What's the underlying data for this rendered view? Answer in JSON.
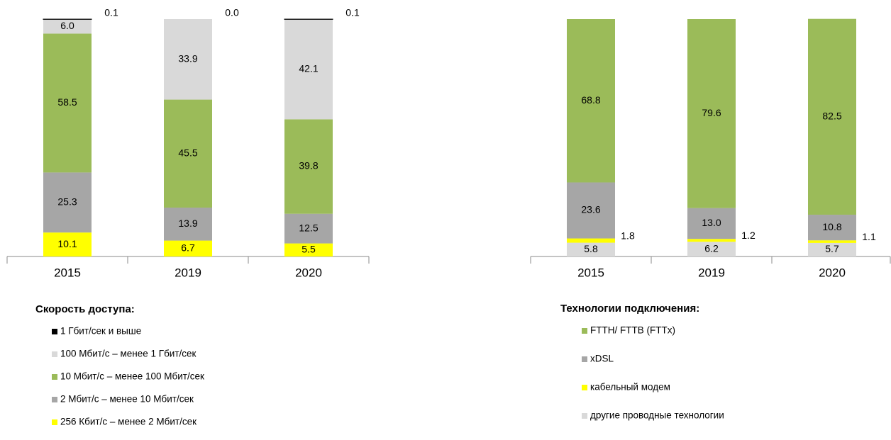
{
  "chart_data": [
    {
      "type": "bar",
      "stacked": true,
      "legend_title": "Скорость доступа:",
      "categories": [
        "2015",
        "2019",
        "2020"
      ],
      "ylim": [
        0,
        100
      ],
      "series": [
        {
          "name": "1 Гбит/сек  и выше",
          "color": "#000000",
          "values": [
            0.1,
            0.0,
            0.1
          ],
          "value_labels": [
            "0.1",
            "0.0",
            "0.1"
          ]
        },
        {
          "name": " 100 Мбит/с – менее 1 Гбит/сек",
          "color": "#d9d9d9",
          "values": [
            6.0,
            33.9,
            42.1
          ],
          "value_labels": [
            "6.0",
            "33.9",
            "42.1"
          ]
        },
        {
          "name": "10 Мбит/с – менее 100 Мбит/сек",
          "color": "#9bbb59",
          "values": [
            58.5,
            45.5,
            39.8
          ],
          "value_labels": [
            "58.5",
            "45.5",
            "39.8"
          ]
        },
        {
          "name": "2  Мбит/с – менее 10 Мбит/сек",
          "color": "#a6a6a6",
          "values": [
            25.3,
            13.9,
            12.5
          ],
          "value_labels": [
            "25.3",
            "13.9",
            "12.5"
          ]
        },
        {
          "name": "256 Кбит/с – менее 2 Мбит/сек",
          "color": "#ffff00",
          "values": [
            10.1,
            6.7,
            5.5
          ],
          "value_labels": [
            "10.1",
            "6.7",
            "5.5"
          ]
        }
      ]
    },
    {
      "type": "bar",
      "stacked": true,
      "legend_title": "Технологии подключения:",
      "categories": [
        "2015",
        "2019",
        "2020"
      ],
      "ylim": [
        0,
        100
      ],
      "series": [
        {
          "name": "FTTH/ FTTB (FTTx)",
          "color": "#9bbb59",
          "values": [
            68.8,
            79.6,
            82.5
          ],
          "value_labels": [
            "68.8",
            "79.6",
            "82.5"
          ]
        },
        {
          "name": "xDSL",
          "color": "#a6a6a6",
          "values": [
            23.6,
            13.0,
            10.8
          ],
          "value_labels": [
            "23.6",
            "13.0",
            "10.8"
          ]
        },
        {
          "name": "кабельный модем",
          "color": "#ffff00",
          "values": [
            1.8,
            1.2,
            1.1
          ],
          "value_labels": [
            "1.8",
            "1.2",
            "1.1"
          ]
        },
        {
          "name": "другие проводные технологии",
          "color": "#d9d9d9",
          "values": [
            5.8,
            6.2,
            5.7
          ],
          "value_labels": [
            "5.8",
            "6.2",
            "5.7"
          ]
        }
      ]
    }
  ]
}
